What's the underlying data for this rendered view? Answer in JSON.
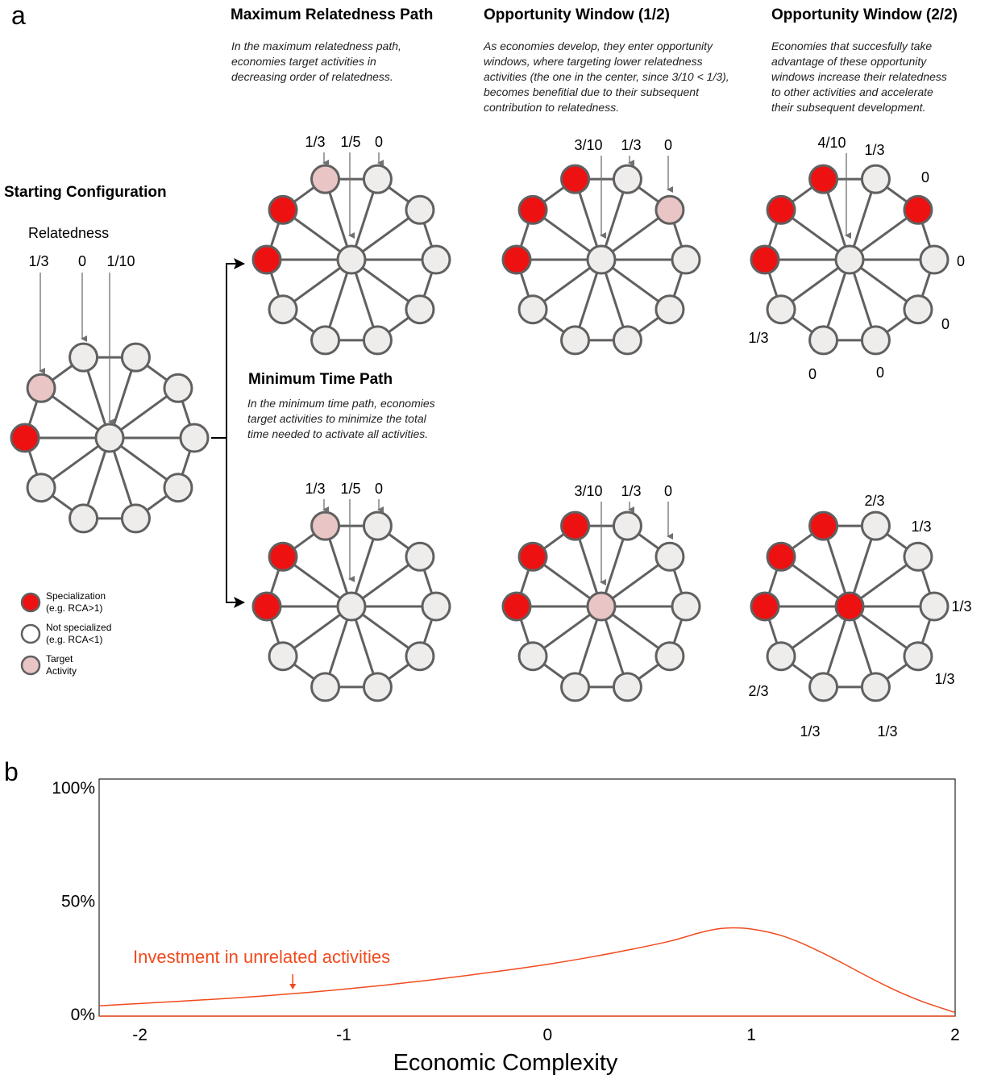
{
  "panel_a": {
    "letter": "a",
    "starting": {
      "title": "Starting Configuration",
      "relatedness_label": "Relatedness",
      "labels": [
        "1/3",
        "0",
        "1/10"
      ]
    },
    "max_path": {
      "title": "Maximum Relatedness Path",
      "desc": [
        "In the maximum relatedness path,",
        "economies target activities in",
        "decreasing order of relatedness."
      ],
      "labels": [
        "1/3",
        "1/5",
        "0"
      ]
    },
    "window1": {
      "title": "Opportunity Window (1/2)",
      "desc": [
        "As economies develop, they enter opportunity",
        "windows, where targeting lower relatedness",
        "activities (the one in the center, since 3/10 < 1/3),",
        "becomes benefitial due to their subsequent",
        "contribution to relatedness."
      ],
      "labels": [
        "3/10",
        "1/3",
        "0"
      ]
    },
    "window2": {
      "title": "Opportunity Window (2/2)",
      "desc": [
        "Economies that succesfully take",
        "advantage of these opportunity",
        "windows increase their relatedness",
        "to other activities and accelerate",
        "their subsequent development."
      ],
      "labels": [
        "4/10",
        "1/3",
        "0",
        "0",
        "0",
        "0",
        "0",
        "1/3"
      ]
    },
    "min_path": {
      "title": "Minimum Time Path",
      "desc": [
        "In the minimum time path, economies",
        "target activities to minimize the total",
        "time needed to activate all activities."
      ],
      "labels": [
        "1/3",
        "1/5",
        "0"
      ]
    },
    "min_window1": {
      "labels": [
        "3/10",
        "1/3",
        "0"
      ]
    },
    "min_window2": {
      "labels": [
        "2/3",
        "1/3",
        "1/3",
        "1/3",
        "1/3",
        "1/3",
        "2/3"
      ]
    },
    "legend": [
      {
        "line1": "Specialization",
        "line2": "(e.g. RCA>1)",
        "state": "red"
      },
      {
        "line1": "Not specialized",
        "line2": "(e.g. RCA<1)",
        "state": "grey"
      },
      {
        "line1": "Target",
        "line2": "Activity",
        "state": "pink"
      }
    ],
    "colors": {
      "red": "#ee1111",
      "pink": "#e9c5c5",
      "grey": "#efedeb",
      "stroke": "#606060"
    },
    "networks": {
      "start": [
        "grey",
        "grey",
        "grey",
        "grey",
        "grey",
        "grey",
        "grey",
        "red",
        "pink",
        "grey"
      ],
      "max1": [
        "grey",
        "grey",
        "grey",
        "grey",
        "grey",
        "grey",
        "grey",
        "red",
        "red",
        "pink"
      ],
      "max2": [
        "grey",
        "pink",
        "grey",
        "grey",
        "grey",
        "grey",
        "grey",
        "red",
        "red",
        "red"
      ],
      "max3": [
        "grey",
        "red",
        "grey",
        "grey",
        "grey",
        "grey",
        "grey",
        "red",
        "red",
        "red"
      ],
      "min1": [
        "grey",
        "grey",
        "grey",
        "grey",
        "grey",
        "grey",
        "grey",
        "red",
        "red",
        "pink"
      ],
      "min2": [
        "grey",
        "grey",
        "grey",
        "grey",
        "grey",
        "grey",
        "grey",
        "red",
        "red",
        "red"
      ],
      "min3": [
        "grey",
        "grey",
        "grey",
        "grey",
        "grey",
        "grey",
        "grey",
        "red",
        "red",
        "red"
      ],
      "center_start": "grey",
      "center_max1": "grey",
      "center_max2": "grey",
      "center_max3": "grey",
      "center_min1": "grey",
      "center_min2": "pink",
      "center_min3": "red"
    }
  },
  "panel_b": {
    "letter": "b",
    "chart_data": {
      "type": "area",
      "xlabel": "Economic Complexity",
      "ylabel": "",
      "xlim": [
        -2.2,
        2.0
      ],
      "ylim": [
        0,
        100
      ],
      "xticks": [
        "-2",
        "-1",
        "0",
        "1",
        "2"
      ],
      "xtick_values": [
        -2,
        -1,
        0,
        1,
        2
      ],
      "yticks": [
        "0%",
        "50%",
        "100%"
      ],
      "ytick_values": [
        0,
        50,
        100
      ],
      "annotation": "Investment in unrelated activities",
      "annotation_x": -1.25,
      "series": [
        {
          "name": "Investment in unrelated activities",
          "color": "#f04a1e",
          "x": [
            -2.2,
            -2.0,
            -1.8,
            -1.6,
            -1.4,
            -1.2,
            -1.0,
            -0.8,
            -0.6,
            -0.4,
            -0.2,
            0.0,
            0.2,
            0.4,
            0.6,
            0.75,
            0.85,
            0.95,
            1.05,
            1.15,
            1.25,
            1.35,
            1.45,
            1.55,
            1.65,
            1.75,
            1.85,
            1.95,
            2.0
          ],
          "y": [
            3.5,
            4.5,
            5.5,
            6.6,
            7.8,
            9.2,
            10.8,
            12.6,
            14.6,
            16.8,
            19.2,
            21.8,
            24.8,
            28.2,
            32.0,
            35.8,
            37.6,
            37.8,
            36.6,
            34.4,
            31.0,
            26.8,
            22.2,
            17.4,
            12.8,
            8.6,
            5.0,
            2.0,
            0.5
          ]
        }
      ]
    }
  }
}
